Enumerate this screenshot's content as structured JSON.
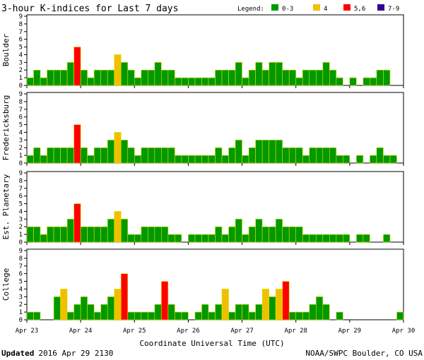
{
  "chart_data": {
    "type": "bar",
    "title": "3-hour K-indices for Last 7 days",
    "legend": {
      "label": "Legend:",
      "items": [
        {
          "label": "0-3",
          "color": "#009900"
        },
        {
          "label": "4",
          "color": "#f0c000"
        },
        {
          "label": "5,6",
          "color": "#ff0000"
        },
        {
          "label": "7-9",
          "color": "#330099"
        }
      ]
    },
    "xlabel": "Coordinate Universal Time (UTC)",
    "x_ticks": [
      "Apr 23",
      "Apr 24",
      "Apr 25",
      "Apr 26",
      "Apr 27",
      "Apr 28",
      "Apr 29",
      "Apr 30"
    ],
    "ylim": [
      0,
      9
    ],
    "y_ticks": [
      "0",
      "1",
      "2",
      "3",
      "4",
      "5",
      "6",
      "7",
      "8",
      "9"
    ],
    "bars_per_day": 8,
    "series": [
      {
        "name": "Boulder",
        "values": [
          1,
          2,
          1,
          2,
          2,
          2,
          3,
          5,
          2,
          1,
          2,
          2,
          2,
          4,
          3,
          2,
          1,
          2,
          2,
          3,
          2,
          2,
          1,
          1,
          1,
          1,
          1,
          1,
          2,
          2,
          2,
          3,
          1,
          2,
          3,
          2,
          3,
          3,
          2,
          2,
          1,
          2,
          2,
          2,
          3,
          2,
          1,
          0,
          1,
          0,
          1,
          1,
          2,
          2,
          0
        ]
      },
      {
        "name": "Fredericksburg",
        "values": [
          1,
          2,
          1,
          2,
          2,
          2,
          2,
          5,
          2,
          1,
          2,
          2,
          3,
          4,
          3,
          2,
          1,
          2,
          2,
          2,
          2,
          2,
          1,
          1,
          1,
          1,
          1,
          1,
          2,
          1,
          2,
          3,
          1,
          2,
          3,
          3,
          3,
          3,
          2,
          2,
          2,
          1,
          2,
          2,
          2,
          2,
          1,
          1,
          0,
          1,
          0,
          1,
          2,
          1,
          1,
          0
        ]
      },
      {
        "name": "Est. Planetary",
        "values": [
          2,
          2,
          1,
          2,
          2,
          2,
          3,
          5,
          2,
          2,
          2,
          2,
          3,
          4,
          3,
          1,
          1,
          2,
          2,
          2,
          2,
          1,
          1,
          0,
          1,
          1,
          1,
          1,
          2,
          1,
          2,
          3,
          1,
          2,
          3,
          2,
          2,
          3,
          2,
          2,
          2,
          1,
          1,
          1,
          1,
          1,
          1,
          1,
          0,
          1,
          1,
          0,
          0,
          1
        ]
      },
      {
        "name": "College",
        "values": [
          1,
          1,
          0,
          0,
          3,
          4,
          1,
          2,
          3,
          2,
          1,
          2,
          3,
          4,
          6,
          1,
          1,
          1,
          1,
          2,
          5,
          2,
          1,
          1,
          0,
          1,
          2,
          1,
          2,
          4,
          1,
          2,
          2,
          1,
          2,
          4,
          3,
          4,
          5,
          1,
          1,
          1,
          2,
          3,
          2,
          0,
          1,
          0,
          0,
          0,
          0,
          0,
          0,
          0,
          0,
          1
        ]
      }
    ]
  },
  "footer": {
    "updated_label": "Updated",
    "updated_value": "2016 Apr 29 2130",
    "credit": "NOAA/SWPC Boulder, CO USA"
  }
}
